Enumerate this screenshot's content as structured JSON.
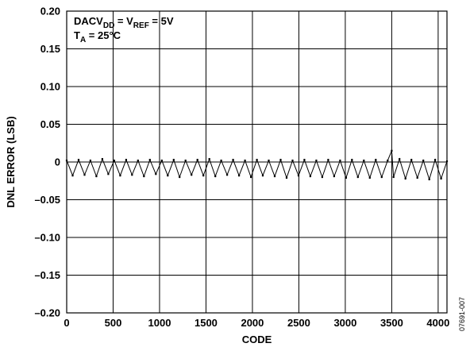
{
  "chart_data": {
    "type": "line",
    "ylabel": "DNL ERROR (LSB)",
    "xlabel": "CODE",
    "xlim": [
      0,
      4095
    ],
    "ylim": [
      -0.2,
      0.2
    ],
    "x_ticks": [
      "0",
      "500",
      "1000",
      "1500",
      "2000",
      "2500",
      "3000",
      "3500",
      "4000"
    ],
    "y_ticks": [
      "0.20",
      "0.15",
      "0.10",
      "0.05",
      "0",
      "–0.05",
      "–0.10",
      "–0.15",
      "–0.20"
    ],
    "grid": true,
    "annotation": {
      "line1_main": "DACV",
      "line1_sub": "DD",
      "line1_eq": " = V",
      "line1_sub2": "REF",
      "line1_rest": " = 5V",
      "line2_main": "T",
      "line2_sub": "A",
      "line2_rest": " = 25°C"
    },
    "figure_id": "07691-007",
    "series": [
      {
        "points": [
          [
            0,
            0.002
          ],
          [
            64,
            -0.018
          ],
          [
            128,
            0.003
          ],
          [
            192,
            -0.017
          ],
          [
            256,
            0.002
          ],
          [
            320,
            -0.019
          ],
          [
            384,
            0.004
          ],
          [
            448,
            -0.016
          ],
          [
            512,
            0.002
          ],
          [
            576,
            -0.018
          ],
          [
            640,
            0.003
          ],
          [
            704,
            -0.017
          ],
          [
            768,
            0.002
          ],
          [
            832,
            -0.019
          ],
          [
            896,
            0.003
          ],
          [
            960,
            -0.016
          ],
          [
            1024,
            0.002
          ],
          [
            1088,
            -0.018
          ],
          [
            1152,
            0.003
          ],
          [
            1216,
            -0.02
          ],
          [
            1280,
            0.002
          ],
          [
            1344,
            -0.017
          ],
          [
            1408,
            0.003
          ],
          [
            1472,
            -0.018
          ],
          [
            1536,
            0.004
          ],
          [
            1600,
            -0.019
          ],
          [
            1664,
            0.002
          ],
          [
            1728,
            -0.017
          ],
          [
            1792,
            0.003
          ],
          [
            1856,
            -0.018
          ],
          [
            1920,
            0.002
          ],
          [
            1984,
            -0.02
          ],
          [
            2048,
            0.003
          ],
          [
            2112,
            -0.018
          ],
          [
            2176,
            0.002
          ],
          [
            2240,
            -0.019
          ],
          [
            2304,
            0.003
          ],
          [
            2368,
            -0.021
          ],
          [
            2432,
            0.002
          ],
          [
            2496,
            -0.018
          ],
          [
            2560,
            0.003
          ],
          [
            2624,
            -0.019
          ],
          [
            2688,
            0.002
          ],
          [
            2752,
            -0.02
          ],
          [
            2816,
            0.003
          ],
          [
            2880,
            -0.019
          ],
          [
            2944,
            0.002
          ],
          [
            3008,
            -0.021
          ],
          [
            3072,
            0.003
          ],
          [
            3136,
            -0.02
          ],
          [
            3200,
            0.002
          ],
          [
            3264,
            -0.021
          ],
          [
            3328,
            0.003
          ],
          [
            3392,
            -0.02
          ],
          [
            3456,
            0.002
          ],
          [
            3500,
            0.015
          ],
          [
            3520,
            -0.02
          ],
          [
            3584,
            0.004
          ],
          [
            3648,
            -0.022
          ],
          [
            3712,
            0.003
          ],
          [
            3776,
            -0.021
          ],
          [
            3840,
            0.002
          ],
          [
            3904,
            -0.023
          ],
          [
            3968,
            0.003
          ],
          [
            4032,
            -0.022
          ],
          [
            4095,
            0.001
          ]
        ]
      }
    ]
  }
}
